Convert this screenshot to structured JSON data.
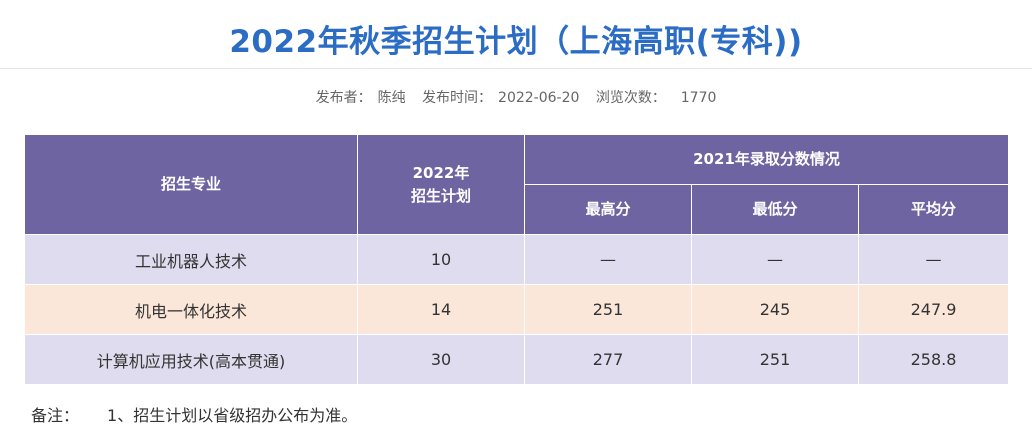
{
  "page": {
    "title": "2022年秋季招生计划（上海高职(专科))",
    "meta": {
      "publisher_label": "发布者：",
      "publisher": "陈纯",
      "time_label": "发布时间：",
      "time": "2022-06-20",
      "views_label": "浏览次数：",
      "views": "1770"
    }
  },
  "table": {
    "headers": {
      "major": "招生专业",
      "plan_line1": "2022年",
      "plan_line2": "招生计划",
      "scores_group": "2021年录取分数情况",
      "max": "最高分",
      "min": "最低分",
      "avg": "平均分"
    },
    "rows": [
      {
        "major": "工业机器人技术",
        "plan": "10",
        "max": "—",
        "min": "—",
        "avg": "—"
      },
      {
        "major": "机电一体化技术",
        "plan": "14",
        "max": "251",
        "min": "245",
        "avg": "247.9"
      },
      {
        "major": "计算机应用技术(高本贯通)",
        "plan": "30",
        "max": "277",
        "min": "251",
        "avg": "258.8"
      }
    ]
  },
  "note": {
    "label": "备注：",
    "text": "1、招生计划以省级招办公布为准。"
  }
}
